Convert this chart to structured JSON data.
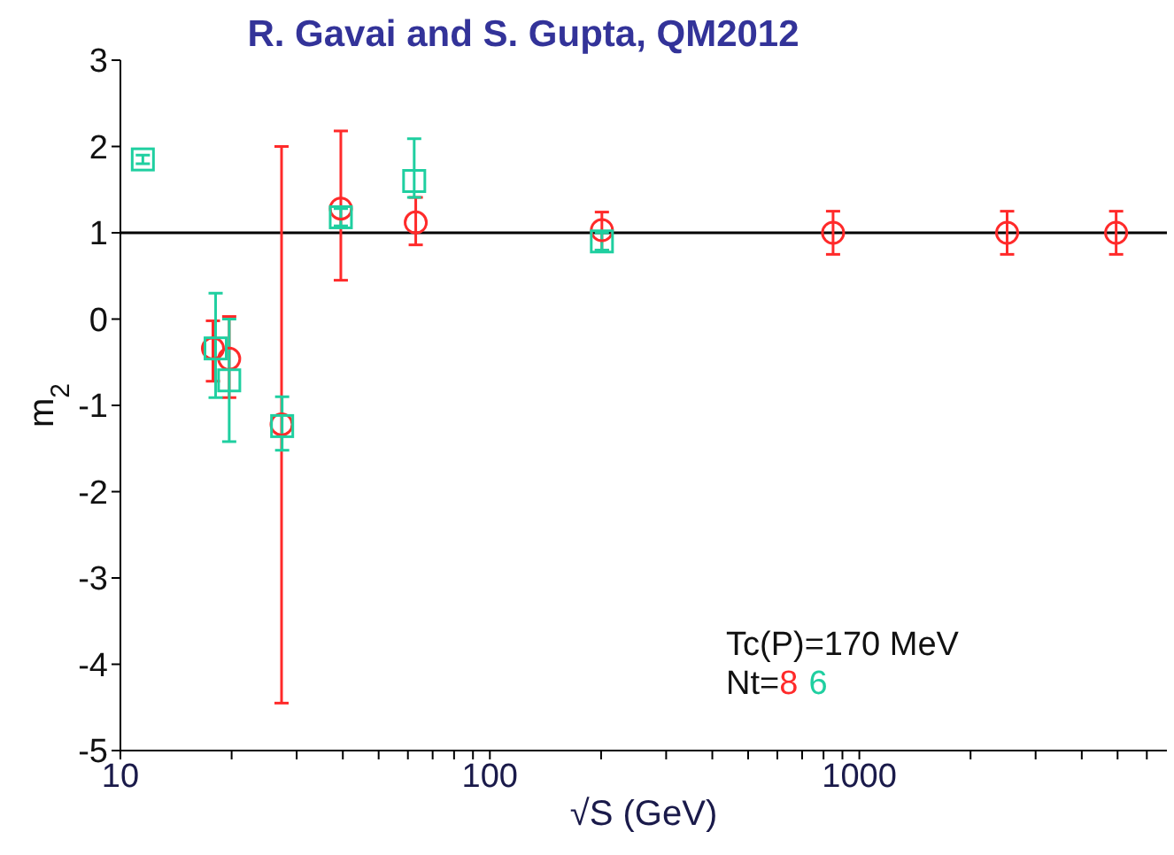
{
  "chart_data": {
    "type": "scatter",
    "title": "R. Gavai and S. Gupta, QM2012",
    "xlabel": "√S (GeV)",
    "ylabel": "m$_{2}$",
    "log": "x",
    "xlim": [
      10,
      6800
    ],
    "xticks": [
      10,
      {
        "value": 20,
        "label": null
      },
      {
        "value": 30,
        "label": null
      },
      {
        "value": 40,
        "label": null
      },
      {
        "value": 50,
        "label": null
      },
      {
        "value": 60,
        "label": null
      },
      {
        "value": 70,
        "label": null
      },
      {
        "value": 80,
        "label": null
      },
      {
        "value": 90,
        "label": null
      },
      100,
      {
        "value": 200,
        "label": null
      },
      {
        "value": 300,
        "label": null
      },
      {
        "value": 400,
        "label": null
      },
      {
        "value": 500,
        "label": null
      },
      {
        "value": 600,
        "label": null
      },
      {
        "value": 700,
        "label": null
      },
      {
        "value": 800,
        "label": null
      },
      {
        "value": 900,
        "label": null
      },
      1000,
      {
        "value": 2000,
        "label": null
      },
      {
        "value": 3000,
        "label": null
      },
      {
        "value": 4000,
        "label": null
      },
      {
        "value": 5000,
        "label": null
      },
      {
        "value": 6000,
        "label": null
      }
    ],
    "ylim": [
      -5,
      3
    ],
    "yticks": [
      -5,
      -4,
      -3,
      -2,
      -1,
      0,
      1,
      2,
      3
    ],
    "grid": false,
    "legend": "bottom right",
    "legend_title": "Nt=",
    "ref_lines": [
      {
        "axis": "y",
        "value": 1,
        "color": "#000000"
      }
    ],
    "annotations": [
      "Tc(P)=170 MeV"
    ],
    "series": [
      {
        "name": "8",
        "color": "#ff2a2a",
        "marker": "circle",
        "x": [
          17.8,
          19.7,
          27.3,
          39.5,
          63,
          201,
          849,
          2512,
          4955
        ],
        "values": [
          -0.34,
          -0.46,
          -1.22,
          1.28,
          1.12,
          1.03,
          1.0,
          1.0,
          1.0
        ],
        "errors": [
          [
            -0.72,
            -0.02
          ],
          [
            -0.91,
            0.03
          ],
          [
            -4.45,
            2.0
          ],
          [
            0.45,
            2.18
          ],
          [
            0.86,
            1.41
          ],
          [
            0.8,
            1.24
          ],
          [
            0.75,
            1.25
          ],
          [
            0.75,
            1.25
          ],
          [
            0.75,
            1.25
          ]
        ]
      },
      {
        "name": "6",
        "color": "#1fcfa0",
        "marker": "square",
        "x": [
          11.5,
          18.1,
          19.7,
          27.4,
          39.5,
          62.4,
          201
        ],
        "values": [
          1.85,
          -0.34,
          -0.71,
          -1.24,
          1.18,
          1.6,
          0.9
        ],
        "errors": [
          [
            1.8,
            1.9
          ],
          [
            -0.91,
            0.3
          ],
          [
            -1.42,
            0.0
          ],
          [
            -1.52,
            -0.9
          ],
          [
            1.08,
            1.28
          ],
          [
            1.41,
            2.09
          ],
          [
            0.8,
            1.0
          ]
        ]
      }
    ]
  }
}
